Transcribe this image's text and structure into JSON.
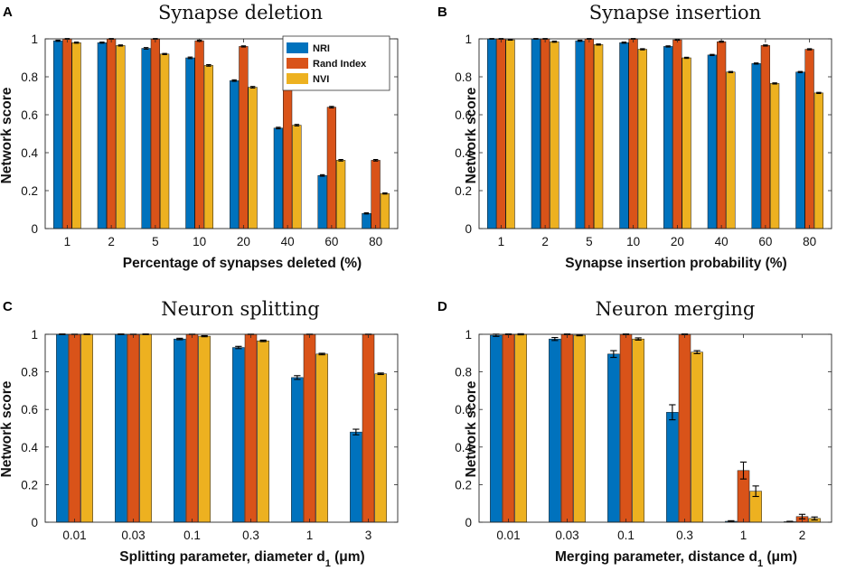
{
  "colors": {
    "NRI": "#0072BD",
    "Rand Index": "#D95319",
    "NVI": "#EDB120"
  },
  "chart_data": [
    {
      "panel": "A",
      "type": "bar",
      "title": "Synapse deletion",
      "xlabel": "Percentage of synapses deleted (%)",
      "ylabel": "Network score",
      "ylim": [
        0,
        1
      ],
      "yticks": [
        "0",
        "0.2",
        "0.4",
        "0.6",
        "0.8",
        "1"
      ],
      "categories": [
        "1",
        "2",
        "5",
        "10",
        "20",
        "40",
        "60",
        "80"
      ],
      "legend": {
        "position": "top-right",
        "entries": [
          "NRI",
          "Rand Index",
          "NVI"
        ]
      },
      "series": [
        {
          "name": "NRI",
          "values": [
            0.99,
            0.98,
            0.95,
            0.9,
            0.78,
            0.53,
            0.28,
            0.08
          ],
          "errors": [
            0.003,
            0.003,
            0.004,
            0.004,
            0.004,
            0.004,
            0.004,
            0.003
          ]
        },
        {
          "name": "Rand Index",
          "values": [
            1.0,
            1.0,
            1.0,
            0.99,
            0.96,
            0.84,
            0.64,
            0.36
          ],
          "errors": [
            0.002,
            0.002,
            0.002,
            0.003,
            0.003,
            0.003,
            0.004,
            0.004
          ]
        },
        {
          "name": "NVI",
          "values": [
            0.98,
            0.965,
            0.92,
            0.86,
            0.745,
            0.545,
            0.36,
            0.185
          ],
          "errors": [
            0.003,
            0.003,
            0.003,
            0.004,
            0.004,
            0.004,
            0.004,
            0.003
          ]
        }
      ]
    },
    {
      "panel": "B",
      "type": "bar",
      "title": "Synapse insertion",
      "xlabel": "Synapse insertion probability (%)",
      "ylabel": "Network score",
      "ylim": [
        0,
        1
      ],
      "yticks": [
        "0",
        "0.2",
        "0.4",
        "0.6",
        "0.8",
        "1"
      ],
      "categories": [
        "1",
        "2",
        "5",
        "10",
        "20",
        "40",
        "60",
        "80"
      ],
      "series": [
        {
          "name": "NRI",
          "values": [
            1.0,
            1.0,
            0.99,
            0.98,
            0.96,
            0.915,
            0.87,
            0.825
          ],
          "errors": [
            0.002,
            0.002,
            0.003,
            0.003,
            0.003,
            0.003,
            0.003,
            0.003
          ]
        },
        {
          "name": "Rand Index",
          "values": [
            1.0,
            1.0,
            1.0,
            1.0,
            0.995,
            0.985,
            0.965,
            0.945
          ],
          "errors": [
            0.002,
            0.002,
            0.002,
            0.002,
            0.002,
            0.003,
            0.003,
            0.003
          ]
        },
        {
          "name": "NVI",
          "values": [
            0.995,
            0.985,
            0.97,
            0.945,
            0.9,
            0.825,
            0.765,
            0.715
          ],
          "errors": [
            0.002,
            0.003,
            0.003,
            0.003,
            0.003,
            0.003,
            0.003,
            0.003
          ]
        }
      ]
    },
    {
      "panel": "C",
      "type": "bar",
      "title": "Neuron splitting",
      "xlabel": "Splitting parameter, diameter d",
      "xlabel_sub": "1",
      "xlabel_unit": " (μm)",
      "ylabel": "Network score",
      "ylim": [
        0,
        1
      ],
      "yticks": [
        "0",
        "0.2",
        "0.4",
        "0.6",
        "0.8",
        "1"
      ],
      "categories": [
        "0.01",
        "0.03",
        "0.1",
        "0.3",
        "1",
        "3"
      ],
      "series": [
        {
          "name": "NRI",
          "values": [
            1.0,
            1.0,
            0.975,
            0.93,
            0.77,
            0.48
          ],
          "errors": [
            0.002,
            0.002,
            0.004,
            0.006,
            0.01,
            0.015
          ]
        },
        {
          "name": "Rand Index",
          "values": [
            1.0,
            1.0,
            1.0,
            1.0,
            1.0,
            1.0
          ],
          "errors": [
            0.001,
            0.001,
            0.001,
            0.001,
            0.001,
            0.001
          ]
        },
        {
          "name": "NVI",
          "values": [
            1.0,
            1.0,
            0.99,
            0.965,
            0.895,
            0.79
          ],
          "errors": [
            0.002,
            0.002,
            0.003,
            0.004,
            0.004,
            0.004
          ]
        }
      ]
    },
    {
      "panel": "D",
      "type": "bar",
      "title": "Neuron merging",
      "xlabel": "Merging parameter, distance d",
      "xlabel_sub": "1",
      "xlabel_unit": " (μm)",
      "ylabel": "Network score",
      "ylim": [
        0,
        1
      ],
      "yticks": [
        "0",
        "0.2",
        "0.4",
        "0.6",
        "0.8",
        "1"
      ],
      "categories": [
        "0.01",
        "0.03",
        "0.1",
        "0.3",
        "1",
        "2"
      ],
      "series": [
        {
          "name": "NRI",
          "values": [
            0.995,
            0.975,
            0.895,
            0.585,
            0.005,
            0.003
          ],
          "errors": [
            0.006,
            0.008,
            0.018,
            0.04,
            0.003,
            0.002
          ]
        },
        {
          "name": "Rand Index",
          "values": [
            1.0,
            1.0,
            1.0,
            1.0,
            0.275,
            0.03
          ],
          "errors": [
            0.002,
            0.002,
            0.002,
            0.002,
            0.045,
            0.012
          ]
        },
        {
          "name": "NVI",
          "values": [
            1.0,
            0.995,
            0.975,
            0.905,
            0.165,
            0.02
          ],
          "errors": [
            0.003,
            0.003,
            0.006,
            0.008,
            0.028,
            0.008
          ]
        }
      ]
    }
  ]
}
